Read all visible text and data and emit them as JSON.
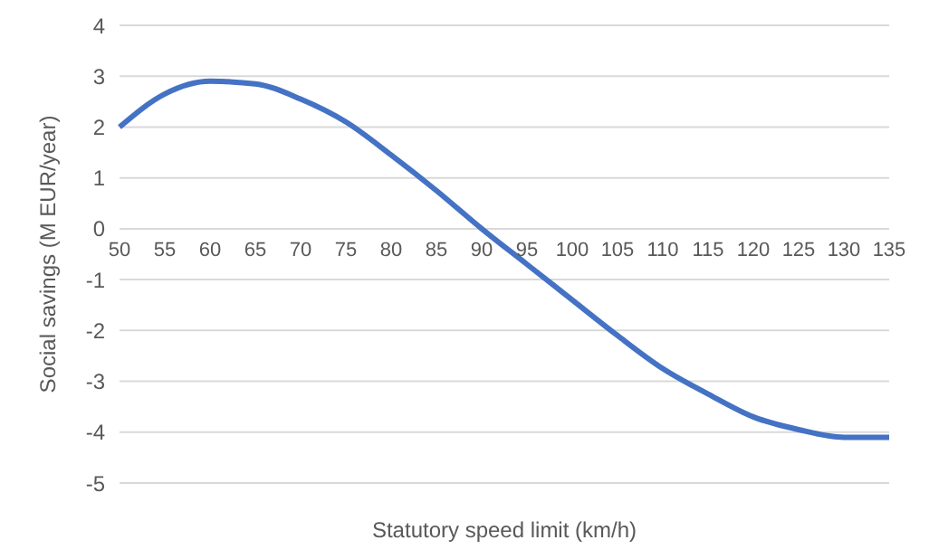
{
  "chart_data": {
    "type": "line",
    "xlabel": "Statutory speed limit (km/h)",
    "ylabel": "Social savings (M EUR/year)",
    "categories": [
      "50",
      "55",
      "60",
      "65",
      "70",
      "75",
      "80",
      "85",
      "90",
      "95",
      "100",
      "105",
      "110",
      "115",
      "120",
      "125",
      "130",
      "135"
    ],
    "series": [
      {
        "color": "#4472c4",
        "values": [
          2.0,
          2.65,
          2.9,
          2.85,
          2.55,
          2.1,
          1.45,
          0.75,
          0.0,
          -0.7,
          -1.4,
          -2.1,
          -2.75,
          -3.25,
          -3.7,
          -3.95,
          -4.1,
          -4.1
        ]
      }
    ],
    "ylim": [
      -5,
      4
    ],
    "yticks": [
      -5,
      -4,
      -3,
      -2,
      -1,
      0,
      1,
      2,
      3,
      4
    ],
    "grid": "y",
    "legend": false,
    "marker": "none",
    "line_style": "solid"
  }
}
